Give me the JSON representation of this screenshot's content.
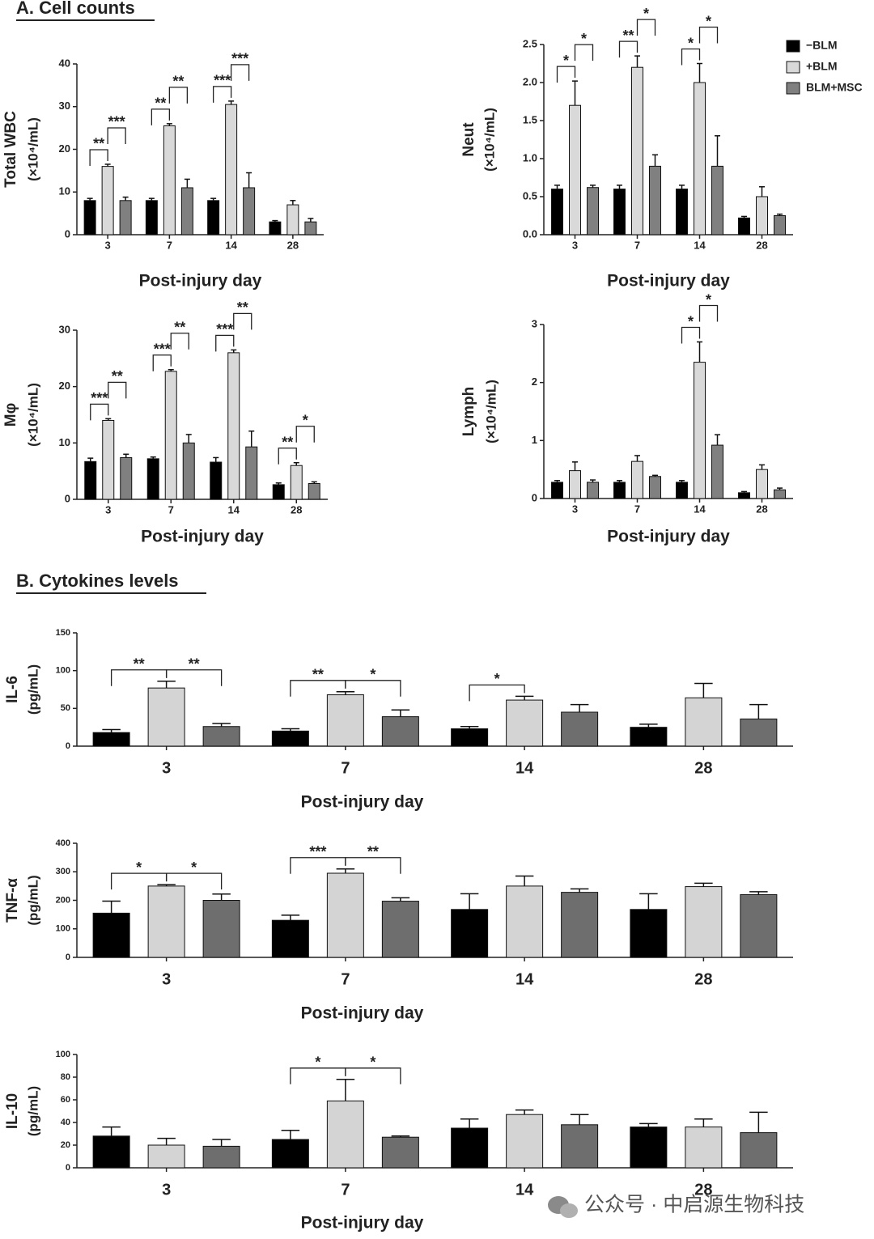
{
  "sections": [
    "A. Cell counts",
    "B. Cytokines levels"
  ],
  "watermark": "公众号 · 中启源生物科技",
  "chart_data": [
    {
      "type": "bar",
      "ylabel": [
        "Total WBC",
        "(×10⁴/mL)"
      ],
      "xlabel": "Post-injury day",
      "categories": [
        "3",
        "7",
        "14",
        "28"
      ],
      "ylim": [
        0,
        40
      ],
      "yticks": [
        0,
        10,
        20,
        30,
        40
      ],
      "series": [
        {
          "color": "#000000",
          "values": [
            8,
            8,
            8,
            3
          ],
          "errors": [
            0.5,
            0.5,
            0.5,
            0.3
          ]
        },
        {
          "color": "#d9d9d9",
          "values": [
            16,
            25.5,
            30.5,
            7
          ],
          "errors": [
            0.5,
            0.5,
            0.8,
            1
          ]
        },
        {
          "color": "#808080",
          "values": [
            8,
            11,
            11,
            3
          ],
          "errors": [
            0.8,
            2,
            3.5,
            0.8
          ]
        }
      ],
      "annotations": [
        "**",
        "***",
        "**",
        "**",
        "***",
        "***"
      ]
    },
    {
      "type": "bar",
      "ylabel": [
        "Neut",
        "(×10⁴/mL)"
      ],
      "xlabel": "Post-injury day",
      "categories": [
        "3",
        "7",
        "14",
        "28"
      ],
      "ylim": [
        0,
        2.5
      ],
      "yticks": [
        {
          "value": 0,
          "label": "0.0"
        },
        0.5,
        {
          "value": 1,
          "label": "1.0"
        },
        1.5,
        {
          "value": 2,
          "label": "2.0"
        },
        2.5
      ],
      "legend": "upper right",
      "series": [
        {
          "name": "−BLM",
          "color": "#000000",
          "values": [
            0.6,
            0.6,
            0.6,
            0.22
          ],
          "errors": [
            0.05,
            0.05,
            0.05,
            0.02
          ]
        },
        {
          "name": "+BLM",
          "color": "#d9d9d9",
          "values": [
            1.7,
            2.2,
            2.0,
            0.5
          ],
          "errors": [
            0.32,
            0.15,
            0.25,
            0.13
          ]
        },
        {
          "name": "BLM+MSC",
          "color": "#808080",
          "values": [
            0.62,
            0.9,
            0.9,
            0.25
          ],
          "errors": [
            0.03,
            0.15,
            0.4,
            0.02
          ]
        }
      ],
      "annotations": [
        "*",
        "*",
        "**",
        "*",
        "*",
        "*"
      ]
    },
    {
      "type": "bar",
      "ylabel": [
        "Mφ",
        "(×10⁴/mL)"
      ],
      "xlabel": "Post-injury day",
      "categories": [
        "3",
        "7",
        "14",
        "28"
      ],
      "ylim": [
        0,
        30
      ],
      "yticks": [
        0,
        10,
        20,
        30
      ],
      "series": [
        {
          "color": "#000000",
          "values": [
            6.7,
            7.2,
            6.6,
            2.6
          ],
          "errors": [
            0.6,
            0.3,
            0.8,
            0.3
          ]
        },
        {
          "color": "#d9d9d9",
          "values": [
            14,
            22.7,
            26,
            6
          ],
          "errors": [
            0.3,
            0.3,
            0.5,
            0.5
          ]
        },
        {
          "color": "#808080",
          "values": [
            7.4,
            10,
            9.3,
            2.8
          ],
          "errors": [
            0.6,
            1.5,
            2.8,
            0.3
          ]
        }
      ],
      "annotations": [
        "***",
        "**",
        "***",
        "**",
        "***",
        "**",
        "**",
        "*"
      ]
    },
    {
      "type": "bar",
      "ylabel": [
        "Lymph",
        "(×10⁴/mL)"
      ],
      "xlabel": "Post-injury day",
      "categories": [
        "3",
        "7",
        "14",
        "28"
      ],
      "ylim": [
        0,
        3
      ],
      "yticks": [
        0,
        1,
        2,
        3
      ],
      "series": [
        {
          "color": "#000000",
          "values": [
            0.28,
            0.28,
            0.28,
            0.1
          ],
          "errors": [
            0.03,
            0.03,
            0.03,
            0.02
          ]
        },
        {
          "color": "#d9d9d9",
          "values": [
            0.48,
            0.64,
            2.35,
            0.5
          ],
          "errors": [
            0.15,
            0.1,
            0.35,
            0.08
          ]
        },
        {
          "color": "#808080",
          "values": [
            0.28,
            0.38,
            0.92,
            0.15
          ],
          "errors": [
            0.04,
            0.02,
            0.18,
            0.03
          ]
        }
      ],
      "annotations": [
        "*",
        "*"
      ]
    },
    {
      "type": "bar",
      "ylabel": [
        "IL-6",
        "(pg/mL)"
      ],
      "xlabel": "Post-injury day",
      "categories": [
        "3",
        "7",
        "14",
        "28"
      ],
      "ylim": [
        0,
        150
      ],
      "yticks": [
        0,
        50,
        100,
        150
      ],
      "series": [
        {
          "color": "#000000",
          "values": [
            18,
            20,
            23,
            25
          ],
          "errors": [
            4,
            3,
            3,
            4
          ]
        },
        {
          "color": "#d4d4d4",
          "values": [
            77,
            68,
            61,
            64
          ],
          "errors": [
            9,
            4,
            5,
            19
          ]
        },
        {
          "color": "#6e6e6e",
          "values": [
            26,
            39,
            45,
            36
          ],
          "errors": [
            4,
            9,
            10,
            19
          ]
        }
      ],
      "annotations": [
        "**",
        "**",
        "**",
        "*",
        "*"
      ]
    },
    {
      "type": "bar",
      "ylabel": [
        "TNF-α",
        "(pg/mL)"
      ],
      "xlabel": "Post-injury day",
      "categories": [
        "3",
        "7",
        "14",
        "28"
      ],
      "ylim": [
        0,
        400
      ],
      "yticks": [
        0,
        100,
        200,
        300,
        400
      ],
      "series": [
        {
          "color": "#000000",
          "values": [
            155,
            130,
            168,
            168
          ],
          "errors": [
            42,
            18,
            55,
            55
          ]
        },
        {
          "color": "#d4d4d4",
          "values": [
            250,
            295,
            250,
            248
          ],
          "errors": [
            5,
            15,
            35,
            12
          ]
        },
        {
          "color": "#6e6e6e",
          "values": [
            200,
            197,
            228,
            220
          ],
          "errors": [
            22,
            12,
            12,
            10
          ]
        }
      ],
      "annotations": [
        "*",
        "*",
        "***",
        "**"
      ]
    },
    {
      "type": "bar",
      "ylabel": [
        "IL-10",
        "(pg/mL)"
      ],
      "xlabel": "Post-injury day",
      "categories": [
        "3",
        "7",
        "14",
        "28"
      ],
      "ylim": [
        0,
        100
      ],
      "yticks": [
        0,
        20,
        40,
        60,
        80,
        100
      ],
      "series": [
        {
          "color": "#000000",
          "values": [
            28,
            25,
            35,
            36
          ],
          "errors": [
            8,
            8,
            8,
            3
          ]
        },
        {
          "color": "#d4d4d4",
          "values": [
            20,
            59,
            47,
            36
          ],
          "errors": [
            6,
            19,
            4,
            7
          ]
        },
        {
          "color": "#6e6e6e",
          "values": [
            19,
            27,
            38,
            31
          ],
          "errors": [
            6,
            1,
            9,
            18
          ]
        }
      ],
      "annotations": [
        "*",
        "*"
      ]
    }
  ]
}
